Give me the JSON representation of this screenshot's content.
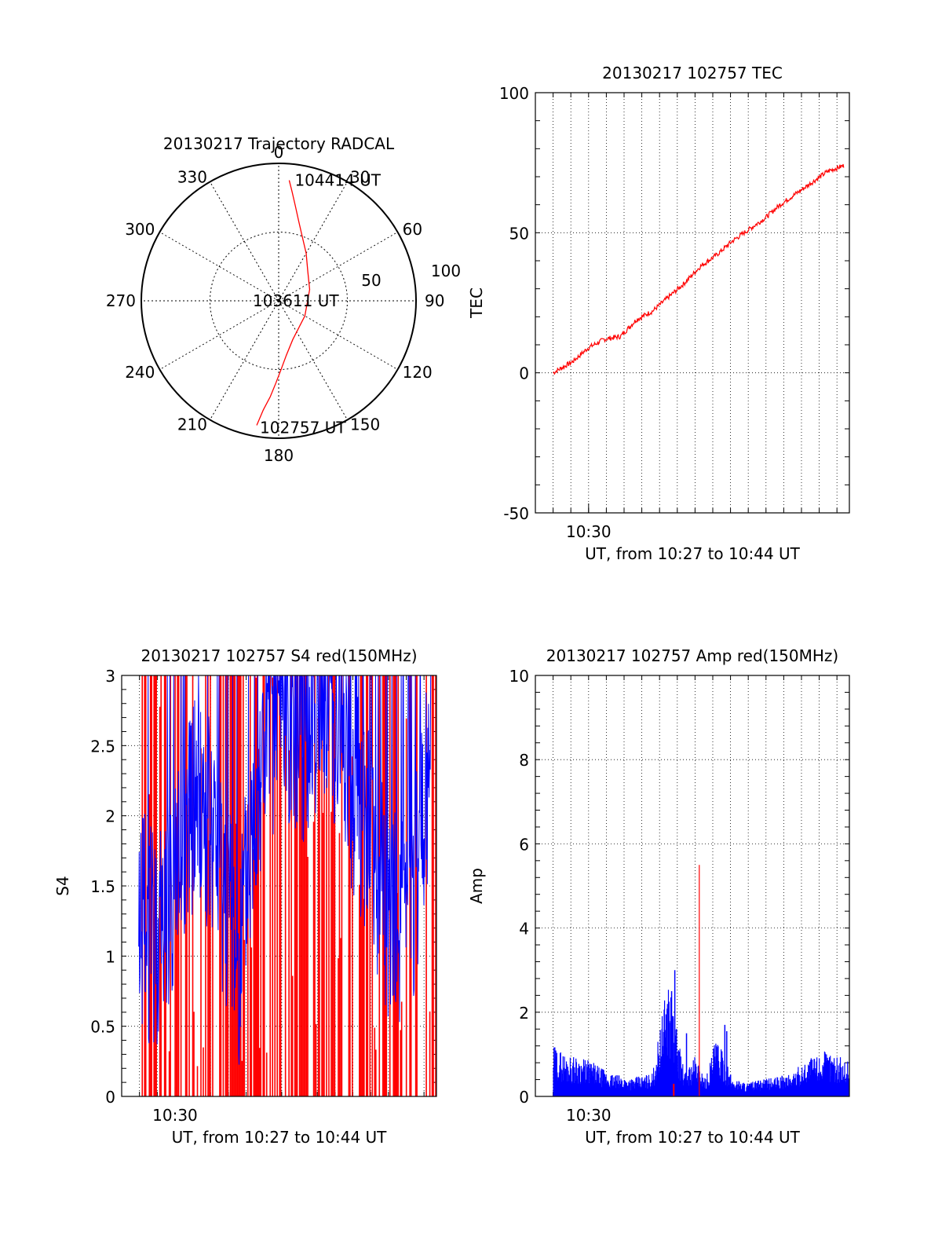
{
  "chart_data": [
    {
      "id": "trajectory",
      "type": "polar",
      "title": "20130217 Trajectory RADCAL",
      "angle_ticks": [
        "0",
        "30",
        "60",
        "90",
        "120",
        "150",
        "180",
        "210",
        "240",
        "270",
        "300",
        "330"
      ],
      "angle_tick_values": [
        0,
        30,
        60,
        90,
        120,
        150,
        180,
        210,
        240,
        270,
        300,
        330
      ],
      "radius_ticks": [
        "50",
        "100"
      ],
      "radius_tick_values": [
        50,
        100
      ],
      "rmax": 100,
      "track": {
        "color": "#ff0000",
        "points": [
          [
            190,
            92
          ],
          [
            188,
            80
          ],
          [
            185,
            70
          ],
          [
            182,
            60
          ],
          [
            178,
            50
          ],
          [
            172,
            40
          ],
          [
            160,
            30
          ],
          [
            120,
            22
          ],
          [
            70,
            24
          ],
          [
            45,
            30
          ],
          [
            30,
            40
          ],
          [
            20,
            50
          ],
          [
            14,
            60
          ],
          [
            10,
            70
          ],
          [
            7,
            80
          ],
          [
            5,
            88
          ]
        ]
      },
      "annotations": [
        {
          "text": "104414 UT",
          "angle": 6,
          "r": 90
        },
        {
          "text": "103611 UT",
          "angle": 0,
          "r": 0
        },
        {
          "text": "102757 UT",
          "angle": 190,
          "r": 92
        }
      ]
    },
    {
      "id": "tec",
      "type": "line",
      "title": "20130217 102757 TEC",
      "ylabel": "TEC",
      "xlabel": "UT, from 10:27 to 10:44 UT",
      "xtick_label": "10:30",
      "xlim": [
        10.45,
        10.745
      ],
      "ylim": [
        -50,
        100
      ],
      "yticks": [
        -50,
        0,
        50,
        100
      ],
      "series": [
        {
          "color": "#ff0000",
          "x": [
            10.4667,
            10.485,
            10.5,
            10.515,
            10.53,
            10.545,
            10.56,
            10.575,
            10.59,
            10.605,
            10.62,
            10.635,
            10.65,
            10.665,
            10.68,
            10.695,
            10.71,
            10.725,
            10.74
          ],
          "y": [
            0,
            4,
            9,
            12,
            13,
            19,
            22,
            27,
            32,
            38,
            42,
            47,
            51,
            55,
            60,
            64,
            68,
            72,
            74
          ]
        }
      ]
    },
    {
      "id": "s4",
      "type": "line",
      "title": "20130217 102757 S4 red(150MHz)",
      "ylabel": "S4",
      "xlabel": "UT, from 10:27 to 10:44 UT",
      "xtick_label": "10:30",
      "xlim": [
        10.45,
        10.745
      ],
      "ylim": [
        0,
        3
      ],
      "yticks": [
        "0",
        "0.5",
        "1",
        "1.5",
        "2",
        "2.5",
        "3"
      ],
      "ytick_values": [
        0,
        0.5,
        1,
        1.5,
        2,
        2.5,
        3
      ],
      "series": [
        {
          "name": "",
          "color": "#ff0000",
          "style": "vertical spikes 0–3 throughout"
        },
        {
          "name": "",
          "color": "#0000ff",
          "x": [
            10.466,
            10.48,
            10.5,
            10.52,
            10.54,
            10.56,
            10.58,
            10.6,
            10.62,
            10.64,
            10.66,
            10.68,
            10.7,
            10.72,
            10.74
          ],
          "y": [
            1.3,
            1.1,
            1.5,
            2.2,
            1.7,
            1.0,
            2.4,
            2.8,
            2.6,
            2.9,
            2.4,
            1.9,
            1.3,
            1.2,
            2.5
          ]
        }
      ]
    },
    {
      "id": "amp",
      "type": "line",
      "title": "20130217 102757 Amp red(150MHz)",
      "ylabel": "Amp",
      "xlabel": "UT, from 10:27 to 10:44 UT",
      "xtick_label": "10:30",
      "xlim": [
        10.45,
        10.745
      ],
      "ylim": [
        0,
        10
      ],
      "yticks": [
        0,
        2,
        4,
        6,
        8,
        10
      ],
      "series": [
        {
          "name": "",
          "color": "#0000ff",
          "x": [
            10.467,
            10.48,
            10.5,
            10.52,
            10.54,
            10.56,
            10.575,
            10.59,
            10.6,
            10.61,
            10.62,
            10.635,
            10.65,
            10.67,
            10.69,
            10.71,
            10.725,
            10.74
          ],
          "y": [
            1.1,
            0.9,
            0.8,
            0.5,
            0.4,
            0.5,
            2.6,
            0.5,
            0.9,
            0.4,
            1.3,
            0.4,
            0.3,
            0.4,
            0.5,
            0.9,
            1.0,
            0.8
          ]
        },
        {
          "name": "",
          "color": "#ff0000",
          "spike": {
            "x": 10.604,
            "y": 5.5
          }
        }
      ]
    }
  ]
}
